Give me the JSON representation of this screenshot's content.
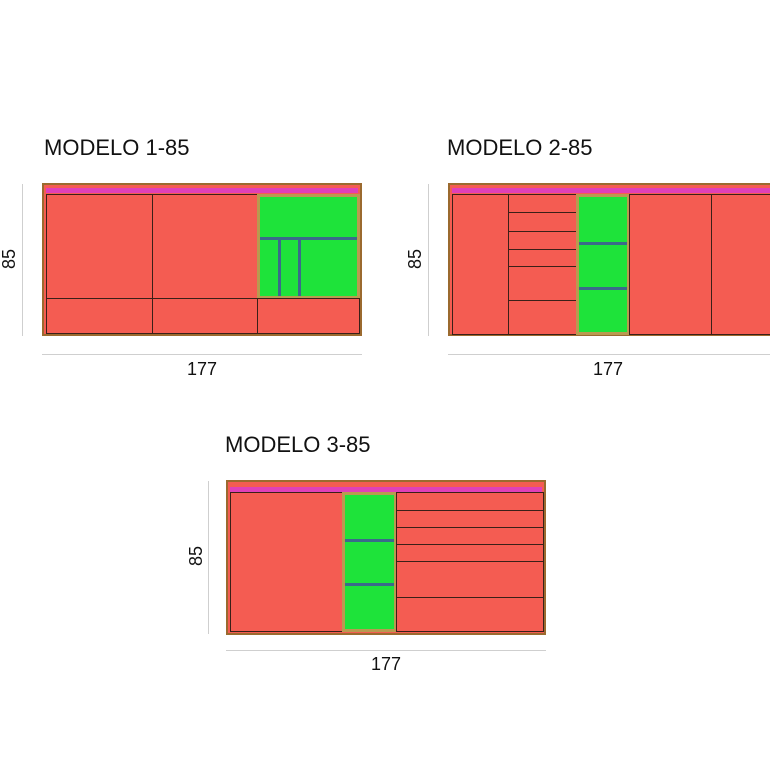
{
  "models": [
    {
      "title": "MODELO 1-85",
      "width_label": "177",
      "height_label": "85"
    },
    {
      "title": "MODELO 2-85",
      "width_label": "177",
      "height_label": "85"
    },
    {
      "title": "MODELO 3-85",
      "width_label": "177",
      "height_label": "85"
    }
  ],
  "colors": {
    "panel": "#f45c52",
    "open_shelf": "#1ee33a",
    "top_strip": "#e040b8",
    "frame": "#9b6a2f",
    "shelf": "#3b6a8a"
  }
}
